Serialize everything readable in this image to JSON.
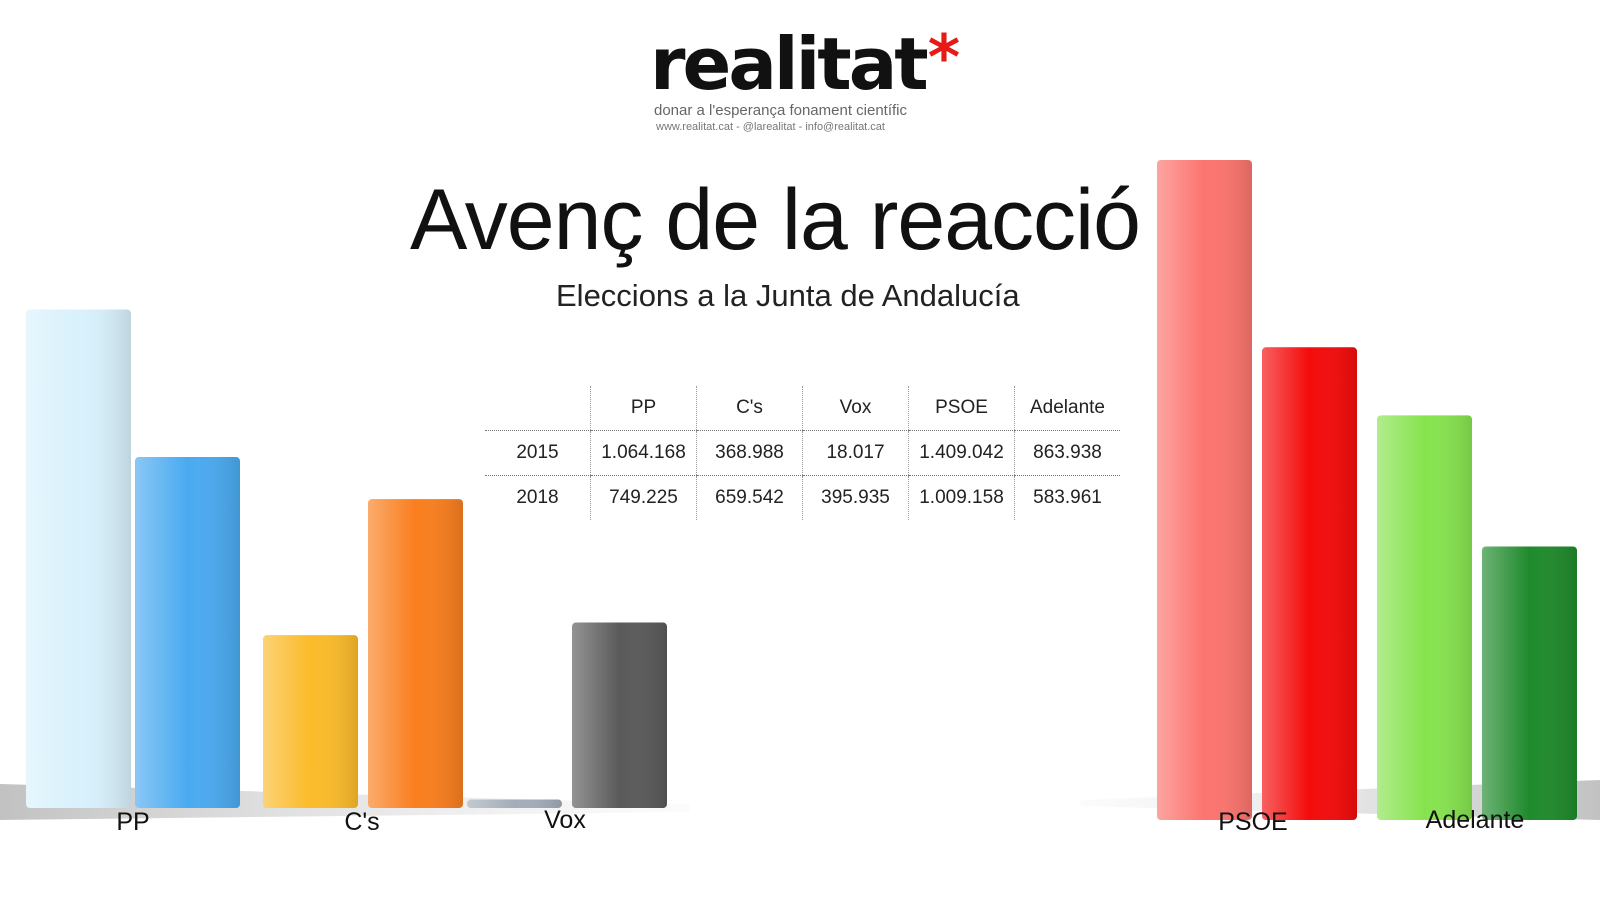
{
  "logo": {
    "word": "realitat",
    "star": "*",
    "tagline": "donar a l'esperança fonament científic",
    "contact": "www.realitat.cat - @larealitat - info@realitat.cat"
  },
  "chart_data": {
    "type": "bar",
    "title": "Avenç de la reacció",
    "subtitle": "Eleccions a la Junta de Andalucía",
    "categories": [
      "PP",
      "C's",
      "Vox",
      "PSOE",
      "Adelante"
    ],
    "series": [
      {
        "name": "2015",
        "values": [
          1064168,
          368988,
          18017,
          1409042,
          863938
        ]
      },
      {
        "name": "2018",
        "values": [
          749225,
          659542,
          395935,
          1009158,
          583961
        ]
      }
    ],
    "colors": {
      "PP": [
        "#d8f1fc",
        "#4aaaf0"
      ],
      "C's": [
        "#fbbb2a",
        "#f97e1e"
      ],
      "Vox": [
        "#a3adb8",
        "#5a5a5a"
      ],
      "PSOE": [
        "#fb746e",
        "#f40b0b"
      ],
      "Adelante": [
        "#86e34e",
        "#1f8a2c"
      ]
    },
    "table": {
      "columns": [
        "PP",
        "C's",
        "Vox",
        "PSOE",
        "Adelante"
      ],
      "rows": [
        {
          "year": "2015",
          "values": [
            "1.064.168",
            "368.988",
            "18.017",
            "1.409.042",
            "863.938"
          ]
        },
        {
          "year": "2018",
          "values": [
            "749.225",
            "659.542",
            "395.935",
            "1.009.158",
            "583.961"
          ]
        }
      ]
    },
    "grid": false,
    "legend": "none"
  }
}
